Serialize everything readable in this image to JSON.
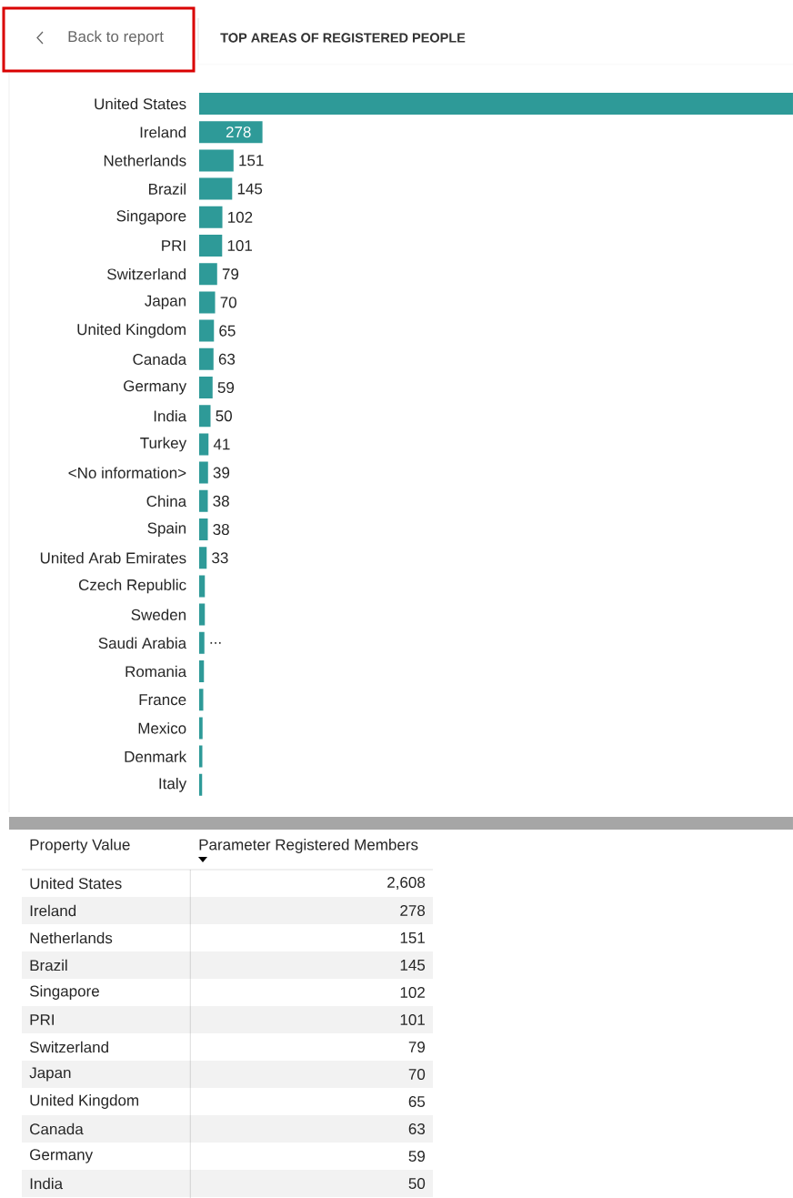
{
  "chart_data": [
    {
      "type": "bar",
      "orientation": "horizontal",
      "title": "TOP AREAS OF REGISTERED PEOPLE",
      "annotations": [
        "Back to report"
      ],
      "color": "#2e9a98",
      "categories": [
        "United States",
        "Ireland",
        "Netherlands",
        "Brazil",
        "Singapore",
        "PRI",
        "Switzerland",
        "Japan",
        "United Kingdom",
        "Canada",
        "Germany",
        "India",
        "Turkey",
        "<No information>",
        "China",
        "Spain",
        "United Arab Emirates",
        "Czech Republic",
        "Sweden",
        "Saudi Arabia",
        "Romania",
        "France",
        "Mexico",
        "Denmark",
        "Italy"
      ],
      "values": [
        2608,
        278,
        151,
        145,
        102,
        101,
        79,
        70,
        65,
        63,
        59,
        50,
        41,
        39,
        38,
        38,
        33,
        25,
        25,
        23,
        21,
        18,
        15,
        14,
        13
      ],
      "value_labels": [
        null,
        "278",
        "151",
        "145",
        "102",
        "101",
        "79",
        "70",
        "65",
        "63",
        "59",
        "50",
        "41",
        "39",
        "38",
        "38",
        "33",
        null,
        null,
        "...",
        null,
        null,
        null,
        null,
        null
      ]
    },
    {
      "type": "other",
      "annotations": [
        "Property Value",
        "Parameter Registered Members"
      ],
      "categories": [
        "United States",
        "Ireland",
        "Netherlands",
        "Brazil",
        "Singapore",
        "PRI",
        "Switzerland",
        "Japan",
        "United Kingdom",
        "Canada",
        "Germany",
        "India"
      ],
      "value_labels": [
        "2,608",
        "278",
        "151",
        "145",
        "102",
        "101",
        "79",
        "70",
        "65",
        "63",
        "59",
        "50"
      ]
    }
  ]
}
